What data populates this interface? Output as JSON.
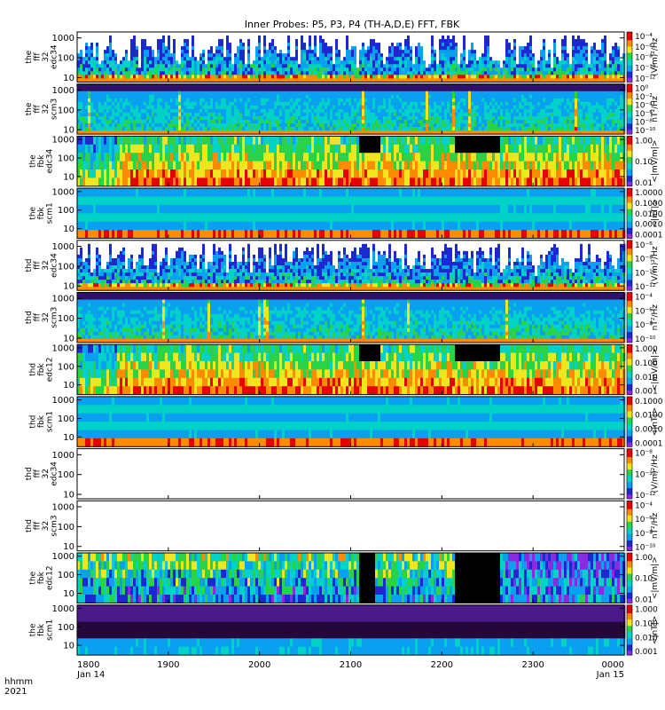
{
  "title": "Inner Probes: P5, P3, P4 (TH-A,D,E) FFT, FBK",
  "x_axis": {
    "corner_labels": [
      "hhmm",
      "2021"
    ],
    "ticks": [
      {
        "hhmm": "1800",
        "date": "Jan 14",
        "hour": 18
      },
      {
        "hhmm": "1900",
        "date": "",
        "hour": 19
      },
      {
        "hhmm": "2000",
        "date": "",
        "hour": 20
      },
      {
        "hhmm": "2100",
        "date": "",
        "hour": 21
      },
      {
        "hhmm": "2200",
        "date": "",
        "hour": 22
      },
      {
        "hhmm": "2300",
        "date": "",
        "hour": 23
      },
      {
        "hhmm": "0000",
        "date": "Jan 15",
        "hour": 24
      }
    ]
  },
  "colors": {
    "colormap": [
      "#ffffff",
      "#8a2be2",
      "#1e28d0",
      "#0aa0f0",
      "#00d2c8",
      "#2ad24a",
      "#f0e61e",
      "#ff8c00",
      "#e60000"
    ],
    "background": "#ffffff"
  },
  "chart_data": {
    "type": "heatmap",
    "x_range_hours": [
      18,
      24
    ],
    "y_scale": "log",
    "panels": [
      {
        "label": [
          "the",
          "fff",
          "32",
          "edc34"
        ],
        "yticks": [
          "1000",
          "100",
          "10"
        ],
        "ylim": [
          6,
          2000
        ],
        "cbar_title": "(V/m)²/Hz",
        "cbar_ticks": [
          "10⁻⁴",
          "10⁻⁶",
          "10⁻⁸",
          "10⁻¹⁰",
          "10⁻¹²"
        ],
        "pattern": "spiky",
        "has_data": true
      },
      {
        "label": [
          "the",
          "fff",
          "32",
          "scm3"
        ],
        "yticks": [
          "1000",
          "100",
          "10"
        ],
        "ylim": [
          6,
          2000
        ],
        "cbar_title": "nT²/Hz",
        "cbar_ticks": [
          "10⁰",
          "10⁻²",
          "10⁻⁴",
          "10⁻⁶",
          "10⁻⁸",
          "10⁻¹⁰"
        ],
        "pattern": "scm",
        "has_data": true
      },
      {
        "label": [
          "the",
          "fbk",
          "edc34"
        ],
        "yticks": [
          "1000",
          "100",
          "10"
        ],
        "ylim": [
          3,
          1500
        ],
        "cbar_title": "<|mV/m|>",
        "cbar_ticks": [
          "1.00",
          "0.10",
          "0.01"
        ],
        "pattern": "fbk",
        "has_data": true
      },
      {
        "label": [
          "the",
          "fbk",
          "scm1"
        ],
        "yticks": [
          "1000",
          "100",
          "10"
        ],
        "ylim": [
          3,
          1500
        ],
        "cbar_title": "<|nT|>",
        "cbar_ticks": [
          "1.0000",
          "0.1000",
          "0.0100",
          "0.0010",
          "0.0001"
        ],
        "pattern": "fbkscm",
        "has_data": true
      },
      {
        "label": [
          "thd",
          "fff",
          "32",
          "edc34"
        ],
        "yticks": [
          "1000",
          "100",
          "10"
        ],
        "ylim": [
          6,
          2000
        ],
        "cbar_title": "(V/m)²/Hz",
        "cbar_ticks": [
          "10⁻⁶",
          "10⁻⁸",
          "10⁻¹⁰",
          "10⁻¹²"
        ],
        "pattern": "spiky",
        "has_data": true
      },
      {
        "label": [
          "thd",
          "fff",
          "32",
          "scm3"
        ],
        "yticks": [
          "1000",
          "100",
          "10"
        ],
        "ylim": [
          6,
          2000
        ],
        "cbar_title": "nT²/Hz",
        "cbar_ticks": [
          "10⁻⁴",
          "10⁻⁶",
          "10⁻⁸",
          "10⁻¹⁰"
        ],
        "pattern": "scm",
        "has_data": true
      },
      {
        "label": [
          "thd",
          "fbk",
          "edc12"
        ],
        "yticks": [
          "1000",
          "100",
          "10"
        ],
        "ylim": [
          3,
          1500
        ],
        "cbar_title": "<|mV/m|>",
        "cbar_ticks": [
          "1.000",
          "0.100",
          "0.010",
          "0.001"
        ],
        "pattern": "fbk",
        "has_data": true
      },
      {
        "label": [
          "thd",
          "fbk",
          "scm1"
        ],
        "yticks": [
          "1000",
          "100",
          "10"
        ],
        "ylim": [
          3,
          1500
        ],
        "cbar_title": "<|nT|>",
        "cbar_ticks": [
          "0.1000",
          "0.0100",
          "0.0010",
          "0.0001"
        ],
        "pattern": "fbkscm",
        "has_data": true
      },
      {
        "label": [
          "thd",
          "fff",
          "32",
          "edc34"
        ],
        "yticks": [
          "1000",
          "100",
          "10"
        ],
        "ylim": [
          6,
          2000
        ],
        "cbar_title": "(V/m)²/Hz",
        "cbar_ticks": [
          "10⁻⁸",
          "10⁻¹⁰",
          "10⁻¹²"
        ],
        "pattern": "empty",
        "has_data": false
      },
      {
        "label": [
          "thd",
          "fff",
          "32",
          "scm3"
        ],
        "yticks": [
          "1000",
          "100",
          "10"
        ],
        "ylim": [
          6,
          2000
        ],
        "cbar_title": "nT²/Hz",
        "cbar_ticks": [
          "10⁻⁴",
          "10⁻⁶",
          "10⁻⁸",
          "10⁻¹⁰"
        ],
        "pattern": "empty",
        "has_data": false
      },
      {
        "label": [
          "the",
          "fbk",
          "edc12"
        ],
        "yticks": [
          "1000",
          "100",
          "10"
        ],
        "ylim": [
          3,
          1500
        ],
        "cbar_title": "<|mV/m|>",
        "cbar_ticks": [
          "1.00",
          "0.10",
          "0.01"
        ],
        "pattern": "fbkdark",
        "has_data": true
      },
      {
        "label": [
          "the",
          "fbk",
          "scm1"
        ],
        "yticks": [
          "1000",
          "100",
          "10"
        ],
        "ylim": [
          3,
          1500
        ],
        "cbar_title": "<|nT|>",
        "cbar_ticks": [
          "1.000",
          "0.100",
          "0.010",
          "0.001"
        ],
        "pattern": "fbkpurple",
        "has_data": true
      }
    ]
  }
}
